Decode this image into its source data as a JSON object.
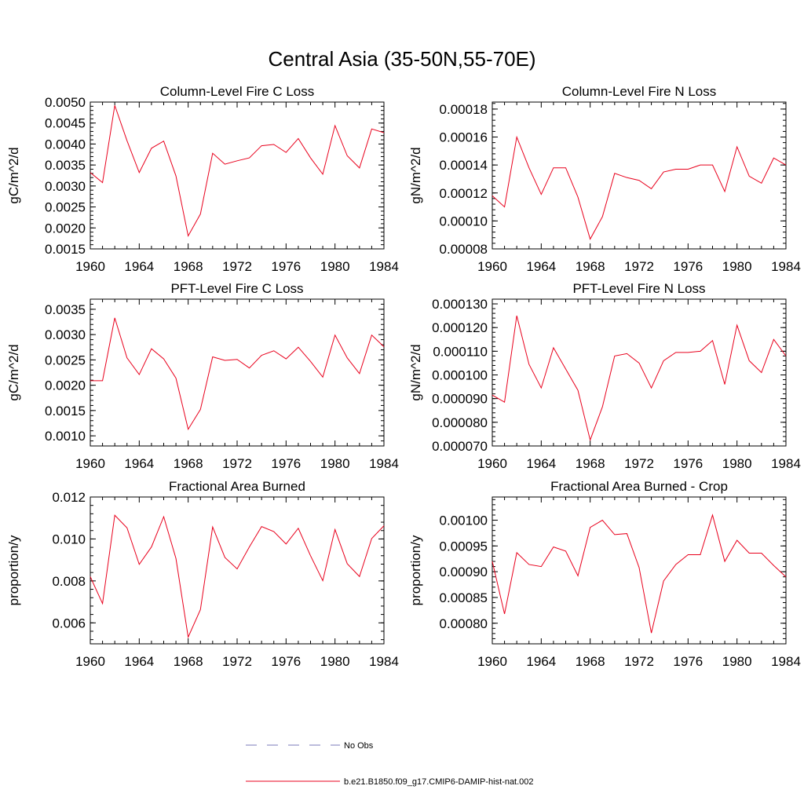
{
  "title": "Central Asia (35-50N,55-70E)",
  "colors": {
    "series": "#e8001c",
    "obs": "#7a7ab8",
    "axis": "#000000"
  },
  "years": [
    1960,
    1961,
    1962,
    1963,
    1964,
    1965,
    1966,
    1967,
    1968,
    1969,
    1970,
    1971,
    1972,
    1973,
    1974,
    1975,
    1976,
    1977,
    1978,
    1979,
    1980,
    1981,
    1982,
    1983,
    1984
  ],
  "xticks": [
    1960,
    1964,
    1968,
    1972,
    1976,
    1980,
    1984
  ],
  "legend": {
    "obs_label": "No Obs",
    "model_label": "b.e21.B1850.f09_g17.CMIP6-DAMIP-hist-nat.002"
  },
  "chart_data": [
    {
      "type": "line",
      "title": "Column-Level Fire C Loss",
      "ylabel": "gC/m^2/d",
      "xlim": [
        1960,
        1984
      ],
      "ylim": [
        0.0015,
        0.005
      ],
      "yticks": [
        0.0015,
        0.002,
        0.0025,
        0.003,
        0.0035,
        0.004,
        0.0045,
        0.005
      ],
      "yticklabels": [
        "0.0015",
        "0.0020",
        "0.0025",
        "0.0030",
        "0.0035",
        "0.0040",
        "0.0045",
        "0.0050"
      ],
      "values": [
        0.00332,
        0.00308,
        0.00492,
        0.00408,
        0.00332,
        0.0039,
        0.00407,
        0.00324,
        0.00181,
        0.00233,
        0.00378,
        0.00352,
        0.0036,
        0.00367,
        0.00396,
        0.00399,
        0.0038,
        0.00413,
        0.00367,
        0.00328,
        0.00444,
        0.00372,
        0.00343,
        0.00436,
        0.00427
      ]
    },
    {
      "type": "line",
      "title": "Column-Level Fire N Loss",
      "ylabel": "gN/m^2/d",
      "xlim": [
        1960,
        1984
      ],
      "ylim": [
        8e-05,
        0.000185
      ],
      "yticks": [
        8e-05,
        0.0001,
        0.00012,
        0.00014,
        0.00016,
        0.00018
      ],
      "yticklabels": [
        "0.00008",
        "0.00010",
        "0.00012",
        "0.00014",
        "0.00016",
        "0.00018"
      ],
      "values": [
        0.000118,
        0.00011,
        0.00016,
        0.000138,
        0.000119,
        0.000138,
        0.000138,
        0.000117,
        8.7e-05,
        0.000103,
        0.000134,
        0.000131,
        0.000129,
        0.000123,
        0.000135,
        0.000137,
        0.000137,
        0.00014,
        0.00014,
        0.000121,
        0.000153,
        0.000132,
        0.000127,
        0.000145,
        0.00014
      ]
    },
    {
      "type": "line",
      "title": "PFT-Level Fire C Loss",
      "ylabel": "gC/m^2/d",
      "xlim": [
        1960,
        1984
      ],
      "ylim": [
        0.0008,
        0.0037
      ],
      "yticks": [
        0.001,
        0.0015,
        0.002,
        0.0025,
        0.003,
        0.0035
      ],
      "yticklabels": [
        "0.0010",
        "0.0015",
        "0.0020",
        "0.0025",
        "0.0030",
        "0.0035"
      ],
      "values": [
        0.00209,
        0.00209,
        0.00333,
        0.00254,
        0.00221,
        0.00272,
        0.00252,
        0.00214,
        0.00113,
        0.00152,
        0.00256,
        0.00249,
        0.00251,
        0.00234,
        0.00259,
        0.00268,
        0.00252,
        0.00275,
        0.00247,
        0.00216,
        0.00299,
        0.00254,
        0.00223,
        0.00299,
        0.00276
      ]
    },
    {
      "type": "line",
      "title": "PFT-Level Fire N Loss",
      "ylabel": "gN/m^2/d",
      "xlim": [
        1960,
        1984
      ],
      "ylim": [
        7e-05,
        0.000132
      ],
      "yticks": [
        7e-05,
        8e-05,
        9e-05,
        0.0001,
        0.00011,
        0.00012,
        0.00013
      ],
      "yticklabels": [
        "0.000070",
        "0.000080",
        "0.000090",
        "0.000100",
        "0.000110",
        "0.000120",
        "0.000130"
      ],
      "values": [
        9.15e-05,
        8.85e-05,
        0.000125,
        0.0001045,
        9.45e-05,
        0.0001115,
        0.0001025,
        9.35e-05,
        7.25e-05,
        8.65e-05,
        0.000108,
        0.000109,
        0.000105,
        9.45e-05,
        0.000106,
        0.0001095,
        0.0001095,
        0.00011,
        0.0001145,
        9.6e-05,
        0.000121,
        0.000106,
        0.000101,
        0.000115,
        0.000108
      ]
    },
    {
      "type": "line",
      "title": "Fractional Area Burned",
      "ylabel": "proportion/y",
      "xlim": [
        1960,
        1984
      ],
      "ylim": [
        0.005,
        0.012
      ],
      "yticks": [
        0.006,
        0.008,
        0.01,
        0.012
      ],
      "yticklabels": [
        "0.006",
        "0.008",
        "0.010",
        "0.012"
      ],
      "values": [
        0.0082,
        0.00692,
        0.01113,
        0.01053,
        0.00879,
        0.00962,
        0.01106,
        0.00907,
        0.00532,
        0.00663,
        0.01057,
        0.00912,
        0.00857,
        0.00962,
        0.01059,
        0.01035,
        0.00976,
        0.01051,
        0.0092,
        0.00801,
        0.01045,
        0.00882,
        0.00821,
        0.01002,
        0.01063
      ]
    },
    {
      "type": "line",
      "title": "Fractional Area Burned - Crop",
      "ylabel": "proportion/y",
      "xlim": [
        1960,
        1984
      ],
      "ylim": [
        0.00076,
        0.001045
      ],
      "yticks": [
        0.0008,
        0.00085,
        0.0009,
        0.00095,
        0.001
      ],
      "yticklabels": [
        "0.00080",
        "0.00085",
        "0.00090",
        "0.00095",
        "0.00100"
      ],
      "values": [
        0.00092,
        0.000818,
        0.000937,
        0.000914,
        0.00091,
        0.000948,
        0.00094,
        0.000892,
        0.000986,
        0.001,
        0.000972,
        0.000974,
        0.000908,
        0.000781,
        0.000882,
        0.000914,
        0.000933,
        0.000933,
        0.00101,
        0.00092,
        0.000961,
        0.000936,
        0.000936,
        0.000912,
        0.00089
      ]
    }
  ]
}
